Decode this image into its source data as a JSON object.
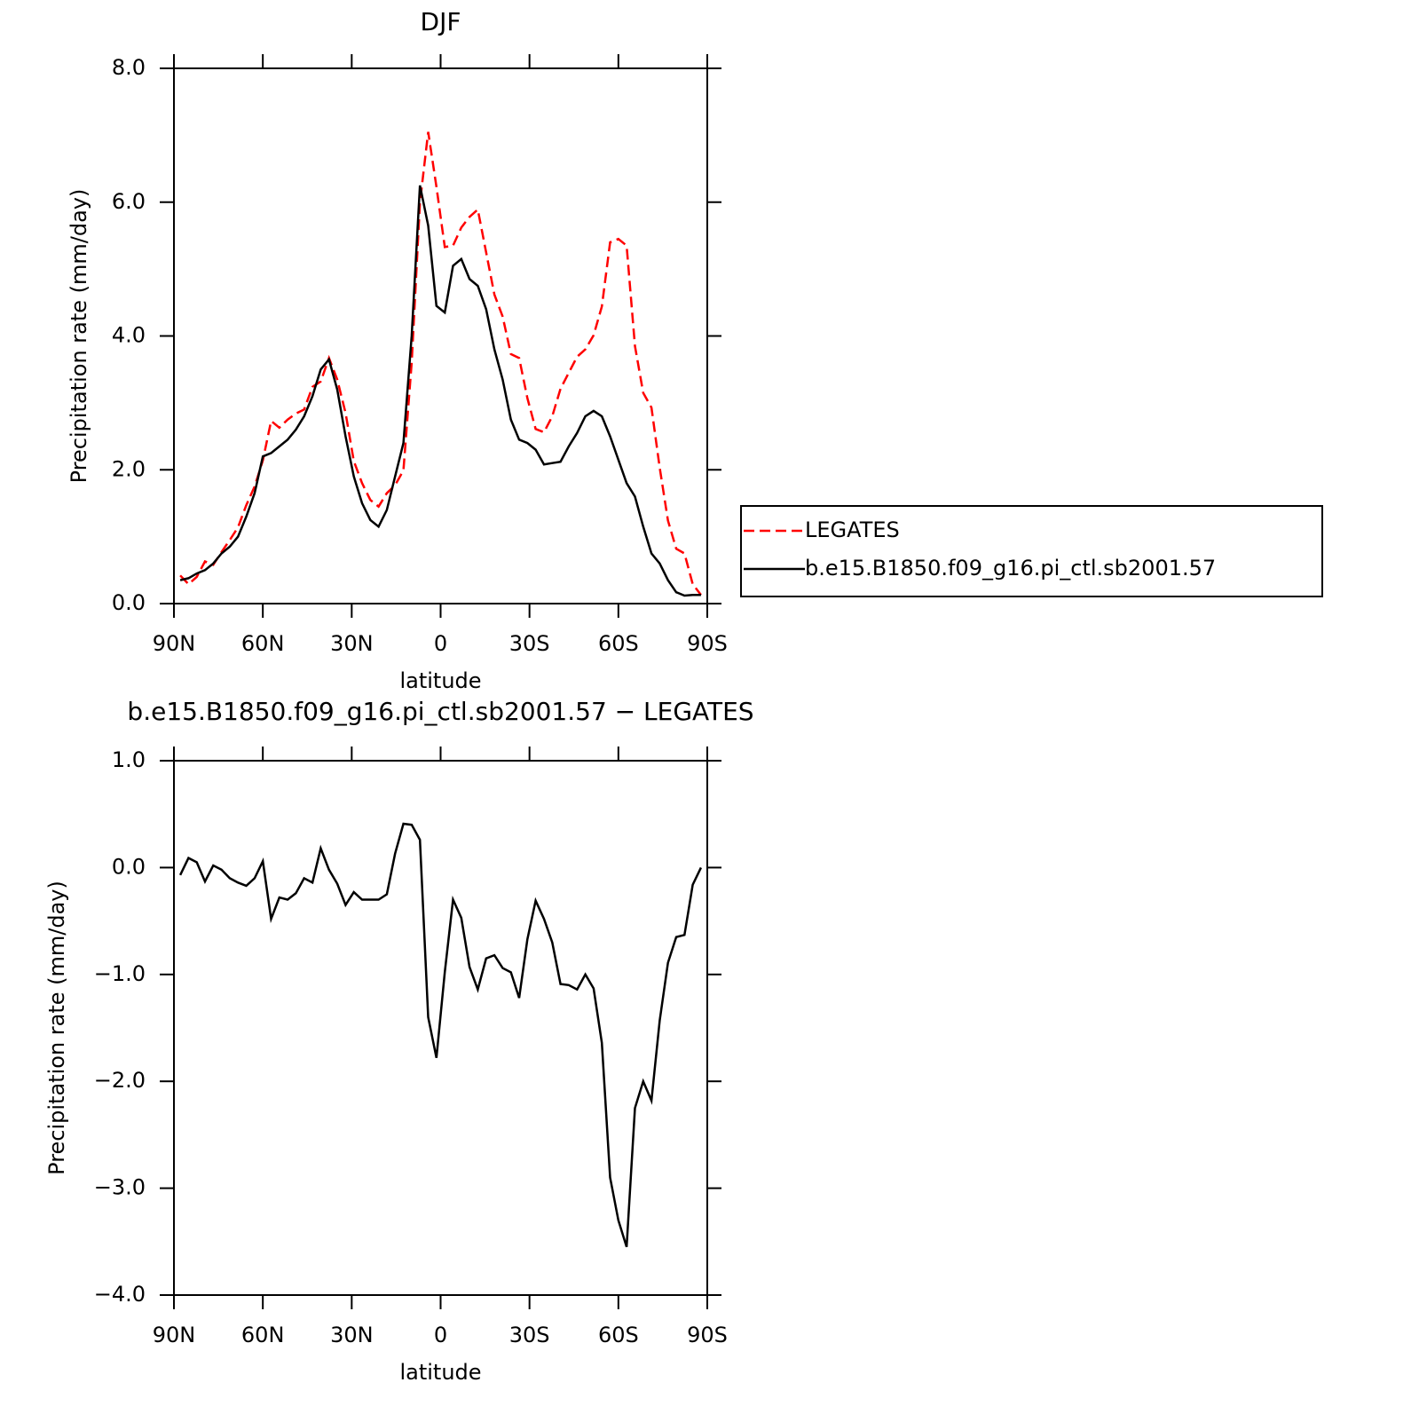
{
  "chart_data": [
    {
      "type": "line",
      "title": "DJF",
      "xlabel": "latitude",
      "ylabel": "Precipitation rate (mm/day)",
      "x": [
        87.86,
        85.1,
        82.31,
        79.53,
        76.74,
        73.95,
        71.16,
        68.37,
        65.58,
        62.79,
        60,
        57.21,
        54.42,
        51.63,
        48.84,
        46.05,
        43.26,
        40.47,
        37.67,
        34.88,
        32.09,
        29.3,
        26.51,
        23.72,
        20.93,
        18.14,
        15.35,
        12.56,
        9.77,
        6.98,
        4.19,
        1.4,
        -1.4,
        -4.19,
        -6.98,
        -9.77,
        -12.56,
        -15.35,
        -18.14,
        -20.93,
        -23.72,
        -26.51,
        -29.3,
        -32.09,
        -34.88,
        -37.67,
        -40.47,
        -43.26,
        -46.05,
        -48.84,
        -51.63,
        -54.42,
        -57.21,
        -60,
        -62.79,
        -65.58,
        -68.37,
        -71.16,
        -73.95,
        -76.74,
        -79.53,
        -82.31,
        -85.1,
        -87.86
      ],
      "series": [
        {
          "name": "LEGATES",
          "color": "#ff0000",
          "style": "dashed",
          "values": [
            0.42,
            0.29,
            0.4,
            0.63,
            0.58,
            0.77,
            0.95,
            1.14,
            1.47,
            1.75,
            2.14,
            2.73,
            2.63,
            2.75,
            2.84,
            2.9,
            3.24,
            3.32,
            3.67,
            3.35,
            2.85,
            2.13,
            1.8,
            1.55,
            1.45,
            1.65,
            1.77,
            1.99,
            3.6,
            5.99,
            7.05,
            6.23,
            5.33,
            5.35,
            5.62,
            5.78,
            5.89,
            5.25,
            4.62,
            4.29,
            3.73,
            3.67,
            3.07,
            2.61,
            2.56,
            2.8,
            3.21,
            3.45,
            3.69,
            3.8,
            4.01,
            4.44,
            5.4,
            5.45,
            5.35,
            3.85,
            3.15,
            2.93,
            2.03,
            1.24,
            0.82,
            0.75,
            0.29,
            0.13
          ]
        },
        {
          "name": "b.e15.B1850.f09_g16.pi_ctl.sb2001.57",
          "color": "#000000",
          "style": "solid",
          "values": [
            0.35,
            0.38,
            0.45,
            0.5,
            0.6,
            0.75,
            0.85,
            1.0,
            1.3,
            1.65,
            2.2,
            2.25,
            2.35,
            2.45,
            2.6,
            2.8,
            3.1,
            3.5,
            3.65,
            3.2,
            2.5,
            1.9,
            1.5,
            1.25,
            1.15,
            1.4,
            1.9,
            2.4,
            4.0,
            6.25,
            5.65,
            4.45,
            4.35,
            5.05,
            5.15,
            4.85,
            4.75,
            4.4,
            3.8,
            3.35,
            2.75,
            2.45,
            2.4,
            2.3,
            2.08,
            2.1,
            2.12,
            2.35,
            2.55,
            2.8,
            2.88,
            2.8,
            2.5,
            2.15,
            1.8,
            1.6,
            1.15,
            0.75,
            0.6,
            0.35,
            0.17,
            0.12,
            0.13,
            0.13
          ]
        }
      ],
      "xlim": [
        90,
        -90
      ],
      "xticks": [
        {
          "value": 90,
          "label": "90N"
        },
        {
          "value": 60,
          "label": "60N"
        },
        {
          "value": 30,
          "label": "30N"
        },
        0,
        {
          "value": -30,
          "label": "30S"
        },
        {
          "value": -60,
          "label": "60S"
        },
        {
          "value": -90,
          "label": "90S"
        }
      ],
      "ylim": [
        0,
        8
      ],
      "yticks": [
        {
          "value": 0,
          "label": "0.0"
        },
        {
          "value": 2,
          "label": "2.0"
        },
        {
          "value": 4,
          "label": "4.0"
        },
        {
          "value": 6,
          "label": "6.0"
        },
        {
          "value": 8,
          "label": "8.0"
        }
      ],
      "legend": "right"
    },
    {
      "type": "line",
      "title": "b.e15.B1850.f09_g16.pi_ctl.sb2001.57 − LEGATES",
      "xlabel": "latitude",
      "ylabel": "Precipitation rate (mm/day)",
      "x": [
        87.86,
        85.1,
        82.31,
        79.53,
        76.74,
        73.95,
        71.16,
        68.37,
        65.58,
        62.79,
        60,
        57.21,
        54.42,
        51.63,
        48.84,
        46.05,
        43.26,
        40.47,
        37.67,
        34.88,
        32.09,
        29.3,
        26.51,
        23.72,
        20.93,
        18.14,
        15.35,
        12.56,
        9.77,
        6.98,
        4.19,
        1.4,
        -1.4,
        -4.19,
        -6.98,
        -9.77,
        -12.56,
        -15.35,
        -18.14,
        -20.93,
        -23.72,
        -26.51,
        -29.3,
        -32.09,
        -34.88,
        -37.67,
        -40.47,
        -43.26,
        -46.05,
        -48.84,
        -51.63,
        -54.42,
        -57.21,
        -60,
        -62.79,
        -65.58,
        -68.37,
        -71.16,
        -73.95,
        -76.74,
        -79.53,
        -82.31,
        -85.1,
        -87.86
      ],
      "values": [
        -0.07,
        0.09,
        0.05,
        -0.13,
        0.02,
        -0.02,
        -0.1,
        -0.14,
        -0.17,
        -0.1,
        0.06,
        -0.48,
        -0.28,
        -0.3,
        -0.24,
        -0.1,
        -0.14,
        0.18,
        -0.02,
        -0.15,
        -0.35,
        -0.23,
        -0.3,
        -0.3,
        -0.3,
        -0.25,
        0.13,
        0.41,
        0.4,
        0.26,
        -1.4,
        -1.78,
        -0.98,
        -0.3,
        -0.47,
        -0.93,
        -1.14,
        -0.85,
        -0.82,
        -0.94,
        -0.98,
        -1.22,
        -0.67,
        -0.31,
        -0.48,
        -0.7,
        -1.09,
        -1.1,
        -1.14,
        -1.0,
        -1.13,
        -1.64,
        -2.9,
        -3.3,
        -3.55,
        -2.25,
        -2.0,
        -2.18,
        -1.43,
        -0.89,
        -0.65,
        -0.63,
        -0.16,
        0.0
      ],
      "color": "#000000",
      "xlim": [
        90,
        -90
      ],
      "xticks": [
        {
          "value": 90,
          "label": "90N"
        },
        {
          "value": 60,
          "label": "60N"
        },
        {
          "value": 30,
          "label": "30N"
        },
        0,
        {
          "value": -30,
          "label": "30S"
        },
        {
          "value": -60,
          "label": "60S"
        },
        {
          "value": -90,
          "label": "90S"
        }
      ],
      "ylim": [
        -4,
        1
      ],
      "yticks": [
        {
          "value": -4,
          "label": "−4.0"
        },
        {
          "value": -3,
          "label": "−3.0"
        },
        {
          "value": -2,
          "label": "−2.0"
        },
        {
          "value": -1,
          "label": "−1.0"
        },
        {
          "value": 0,
          "label": "0.0"
        },
        {
          "value": 1,
          "label": "1.0"
        }
      ]
    }
  ]
}
